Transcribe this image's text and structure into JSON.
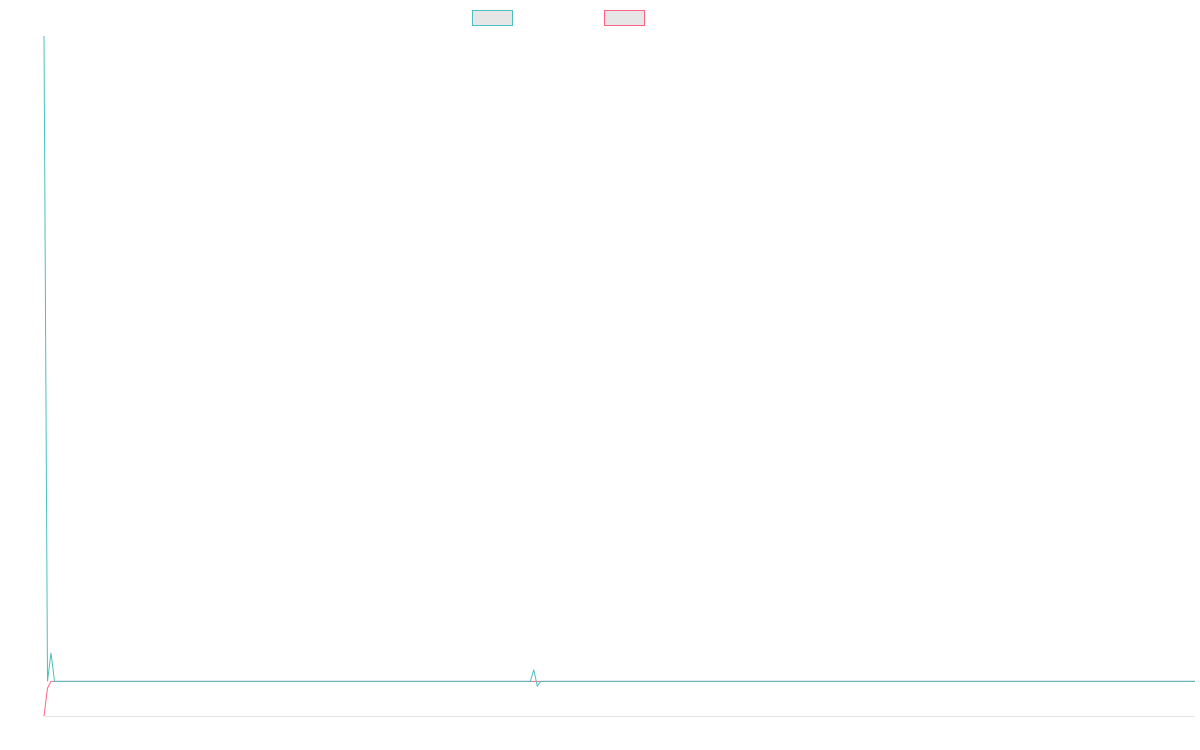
{
  "chart_data": {
    "type": "line",
    "xlim": [
      0,
      329
    ],
    "ylim": [
      0,
      100
    ],
    "series": [
      {
        "color": "#4bc0c0",
        "x": [
          0,
          1,
          2,
          3,
          139,
          140,
          141,
          142,
          329
        ],
        "values": [
          100,
          5.1,
          9.3,
          5.1,
          5.1,
          6.8,
          4.4,
          5.1,
          5.1
        ]
      },
      {
        "color": "#ff6384",
        "x": [
          0,
          1,
          2,
          329
        ],
        "values": [
          0,
          4.1,
          5.1,
          5.1
        ]
      }
    ]
  }
}
